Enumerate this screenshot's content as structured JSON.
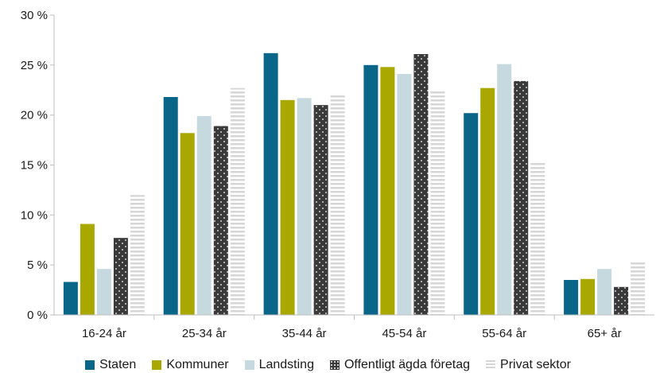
{
  "chart_data": {
    "type": "bar",
    "categories": [
      "16-24 år",
      "25-34 år",
      "35-44 år",
      "45-54 år",
      "55-64 år",
      "65+ år"
    ],
    "ylim": [
      0,
      30
    ],
    "yticks": [
      "0 %",
      "5 %",
      "10 %",
      "15 %",
      "20 %",
      "25 %",
      "30 %"
    ],
    "ytick_values": [
      0,
      5,
      10,
      15,
      20,
      25,
      30
    ],
    "legend_position": "bottom",
    "grid": false,
    "series": [
      {
        "name": "Staten",
        "color": "#0a6688",
        "pattern": "solid",
        "values": [
          3.3,
          21.8,
          26.2,
          25.0,
          20.2,
          3.5
        ]
      },
      {
        "name": "Kommuner",
        "color": "#a9a800",
        "pattern": "solid",
        "values": [
          9.1,
          18.2,
          21.5,
          24.8,
          22.7,
          3.6
        ]
      },
      {
        "name": "Landsting",
        "color": "#c5d9df",
        "pattern": "solid",
        "values": [
          4.6,
          19.9,
          21.7,
          24.1,
          25.1,
          4.6
        ]
      },
      {
        "name": "Offentligt ägda företag",
        "color": "#3a3a3a",
        "pattern": "dots",
        "values": [
          7.7,
          18.9,
          21.0,
          26.1,
          23.4,
          2.8
        ]
      },
      {
        "name": "Privat sektor",
        "color": "#d6d6d6",
        "pattern": "stripes",
        "values": [
          12.0,
          22.7,
          22.1,
          22.4,
          15.2,
          5.3
        ]
      }
    ]
  }
}
